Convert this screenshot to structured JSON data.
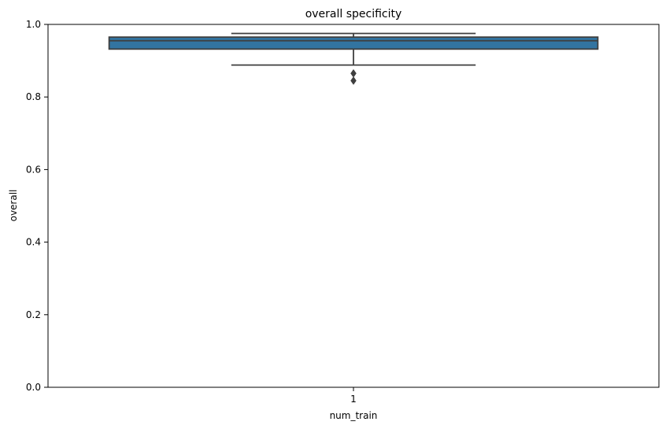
{
  "chart_data": {
    "type": "box",
    "title": "overall specificity",
    "xlabel": "num_train",
    "ylabel": "overall",
    "categories": [
      "1"
    ],
    "ylim": [
      0.0,
      1.0
    ],
    "yticks": [
      "0.0",
      "0.2",
      "0.4",
      "0.6",
      "0.8",
      "1.0"
    ],
    "grid": false,
    "legend": "none",
    "boxes": [
      {
        "category": "1",
        "whisker_low": 0.888,
        "q1": 0.932,
        "median": 0.955,
        "q3": 0.965,
        "whisker_high": 0.975,
        "outliers": [
          0.865,
          0.845
        ],
        "color": "#3274a1"
      }
    ],
    "colors": {
      "box_fill": "#3274a1",
      "box_line": "#3f3f3f",
      "axis": "#000000"
    }
  }
}
